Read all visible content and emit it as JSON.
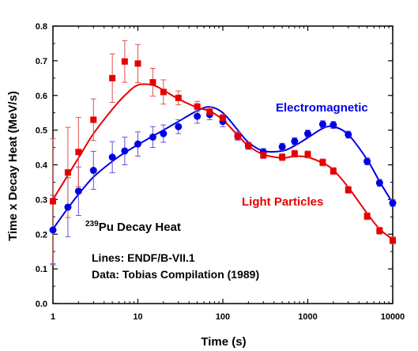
{
  "chart_data": {
    "type": "scatter",
    "title": "",
    "xlabel": "Time (s)",
    "ylabel": "Time x Decay Heat (MeV/s)",
    "x_scale": "log",
    "xlim": [
      1,
      10000
    ],
    "ylim": [
      0.0,
      0.8
    ],
    "x_ticks": [
      "1",
      "10",
      "100",
      "1000",
      "10000"
    ],
    "y_ticks": [
      "0.0",
      "0.1",
      "0.2",
      "0.3",
      "0.4",
      "0.5",
      "0.6",
      "0.7",
      "0.8"
    ],
    "annotations": {
      "isotope_mass": "239",
      "isotope_label": "Pu Decay Heat",
      "lines_note": "Lines: ENDF/B-VII.1",
      "data_note": "Data: Tobias Compilation (1989)"
    },
    "series": [
      {
        "name": "Electromagnetic",
        "color": "#0000e6",
        "marker": "circle",
        "points": [
          {
            "x": 1.0,
            "y": 0.212,
            "err": 0.1
          },
          {
            "x": 1.5,
            "y": 0.278,
            "err": 0.085
          },
          {
            "x": 2.0,
            "y": 0.324,
            "err": 0.07
          },
          {
            "x": 3.0,
            "y": 0.384,
            "err": 0.055
          },
          {
            "x": 5.0,
            "y": 0.422,
            "err": 0.045
          },
          {
            "x": 7.0,
            "y": 0.44,
            "err": 0.04
          },
          {
            "x": 10.0,
            "y": 0.46,
            "err": 0.035
          },
          {
            "x": 15.0,
            "y": 0.48,
            "err": 0.03
          },
          {
            "x": 20.0,
            "y": 0.49,
            "err": 0.025
          },
          {
            "x": 30.0,
            "y": 0.51,
            "err": 0.02
          },
          {
            "x": 50.0,
            "y": 0.54,
            "err": 0.02
          },
          {
            "x": 70.0,
            "y": 0.545,
            "err": 0.015
          },
          {
            "x": 100.0,
            "y": 0.525,
            "err": 0.015
          },
          {
            "x": 150.0,
            "y": 0.483,
            "err": 0.012
          },
          {
            "x": 200.0,
            "y": 0.455,
            "err": 0.01
          },
          {
            "x": 300.0,
            "y": 0.437,
            "err": 0.01
          },
          {
            "x": 500.0,
            "y": 0.452,
            "err": 0.01
          },
          {
            "x": 700.0,
            "y": 0.468,
            "err": 0.01
          },
          {
            "x": 1000.0,
            "y": 0.49,
            "err": 0.01
          },
          {
            "x": 1500.0,
            "y": 0.517,
            "err": 0.01
          },
          {
            "x": 2000.0,
            "y": 0.515,
            "err": 0.01
          },
          {
            "x": 3000.0,
            "y": 0.487,
            "err": 0.01
          },
          {
            "x": 5000.0,
            "y": 0.41,
            "err": 0.01
          },
          {
            "x": 7000.0,
            "y": 0.348,
            "err": 0.01
          },
          {
            "x": 10000.0,
            "y": 0.29,
            "err": 0.01
          }
        ],
        "curve": [
          {
            "x": 1.0,
            "y": 0.215
          },
          {
            "x": 1.5,
            "y": 0.275
          },
          {
            "x": 2.0,
            "y": 0.315
          },
          {
            "x": 3.0,
            "y": 0.365
          },
          {
            "x": 5.0,
            "y": 0.41
          },
          {
            "x": 7.0,
            "y": 0.435
          },
          {
            "x": 10.0,
            "y": 0.458
          },
          {
            "x": 15.0,
            "y": 0.483
          },
          {
            "x": 20.0,
            "y": 0.5
          },
          {
            "x": 30.0,
            "y": 0.525
          },
          {
            "x": 50.0,
            "y": 0.556
          },
          {
            "x": 70.0,
            "y": 0.567
          },
          {
            "x": 100.0,
            "y": 0.55
          },
          {
            "x": 150.0,
            "y": 0.5
          },
          {
            "x": 200.0,
            "y": 0.465
          },
          {
            "x": 300.0,
            "y": 0.44
          },
          {
            "x": 500.0,
            "y": 0.44
          },
          {
            "x": 700.0,
            "y": 0.455
          },
          {
            "x": 1000.0,
            "y": 0.478
          },
          {
            "x": 1500.0,
            "y": 0.505
          },
          {
            "x": 2000.0,
            "y": 0.51
          },
          {
            "x": 3000.0,
            "y": 0.487
          },
          {
            "x": 5000.0,
            "y": 0.415
          },
          {
            "x": 7000.0,
            "y": 0.352
          },
          {
            "x": 10000.0,
            "y": 0.29
          }
        ]
      },
      {
        "name": "Light Particles",
        "color": "#e60000",
        "marker": "square",
        "points": [
          {
            "x": 1.0,
            "y": 0.295,
            "err": 0.18
          },
          {
            "x": 1.5,
            "y": 0.378,
            "err": 0.13
          },
          {
            "x": 2.0,
            "y": 0.437,
            "err": 0.1
          },
          {
            "x": 3.0,
            "y": 0.53,
            "err": 0.06
          },
          {
            "x": 5.0,
            "y": 0.65,
            "err": 0.07
          },
          {
            "x": 7.0,
            "y": 0.698,
            "err": 0.06
          },
          {
            "x": 10.0,
            "y": 0.692,
            "err": 0.055
          },
          {
            "x": 15.0,
            "y": 0.638,
            "err": 0.04
          },
          {
            "x": 20.0,
            "y": 0.61,
            "err": 0.035
          },
          {
            "x": 30.0,
            "y": 0.593,
            "err": 0.02
          },
          {
            "x": 50.0,
            "y": 0.568,
            "err": 0.015
          },
          {
            "x": 70.0,
            "y": 0.553,
            "err": 0.012
          },
          {
            "x": 100.0,
            "y": 0.535,
            "err": 0.01
          },
          {
            "x": 150.0,
            "y": 0.483,
            "err": 0.01
          },
          {
            "x": 200.0,
            "y": 0.455,
            "err": 0.01
          },
          {
            "x": 300.0,
            "y": 0.428,
            "err": 0.01
          },
          {
            "x": 500.0,
            "y": 0.422,
            "err": 0.01
          },
          {
            "x": 700.0,
            "y": 0.432,
            "err": 0.01
          },
          {
            "x": 1000.0,
            "y": 0.43,
            "err": 0.01
          },
          {
            "x": 1500.0,
            "y": 0.407,
            "err": 0.01
          },
          {
            "x": 2000.0,
            "y": 0.382,
            "err": 0.01
          },
          {
            "x": 3000.0,
            "y": 0.328,
            "err": 0.01
          },
          {
            "x": 5000.0,
            "y": 0.252,
            "err": 0.01
          },
          {
            "x": 7000.0,
            "y": 0.21,
            "err": 0.01
          },
          {
            "x": 10000.0,
            "y": 0.182,
            "err": 0.01
          }
        ],
        "curve": [
          {
            "x": 1.0,
            "y": 0.3
          },
          {
            "x": 1.5,
            "y": 0.37
          },
          {
            "x": 2.0,
            "y": 0.42
          },
          {
            "x": 3.0,
            "y": 0.49
          },
          {
            "x": 5.0,
            "y": 0.56
          },
          {
            "x": 7.0,
            "y": 0.6
          },
          {
            "x": 10.0,
            "y": 0.63
          },
          {
            "x": 15.0,
            "y": 0.63
          },
          {
            "x": 20.0,
            "y": 0.615
          },
          {
            "x": 30.0,
            "y": 0.59
          },
          {
            "x": 50.0,
            "y": 0.565
          },
          {
            "x": 70.0,
            "y": 0.555
          },
          {
            "x": 100.0,
            "y": 0.53
          },
          {
            "x": 150.0,
            "y": 0.485
          },
          {
            "x": 200.0,
            "y": 0.455
          },
          {
            "x": 300.0,
            "y": 0.43
          },
          {
            "x": 500.0,
            "y": 0.42
          },
          {
            "x": 700.0,
            "y": 0.425
          },
          {
            "x": 1000.0,
            "y": 0.422
          },
          {
            "x": 1500.0,
            "y": 0.405
          },
          {
            "x": 2000.0,
            "y": 0.385
          },
          {
            "x": 3000.0,
            "y": 0.335
          },
          {
            "x": 5000.0,
            "y": 0.26
          },
          {
            "x": 7000.0,
            "y": 0.215
          },
          {
            "x": 10000.0,
            "y": 0.185
          }
        ]
      }
    ]
  }
}
